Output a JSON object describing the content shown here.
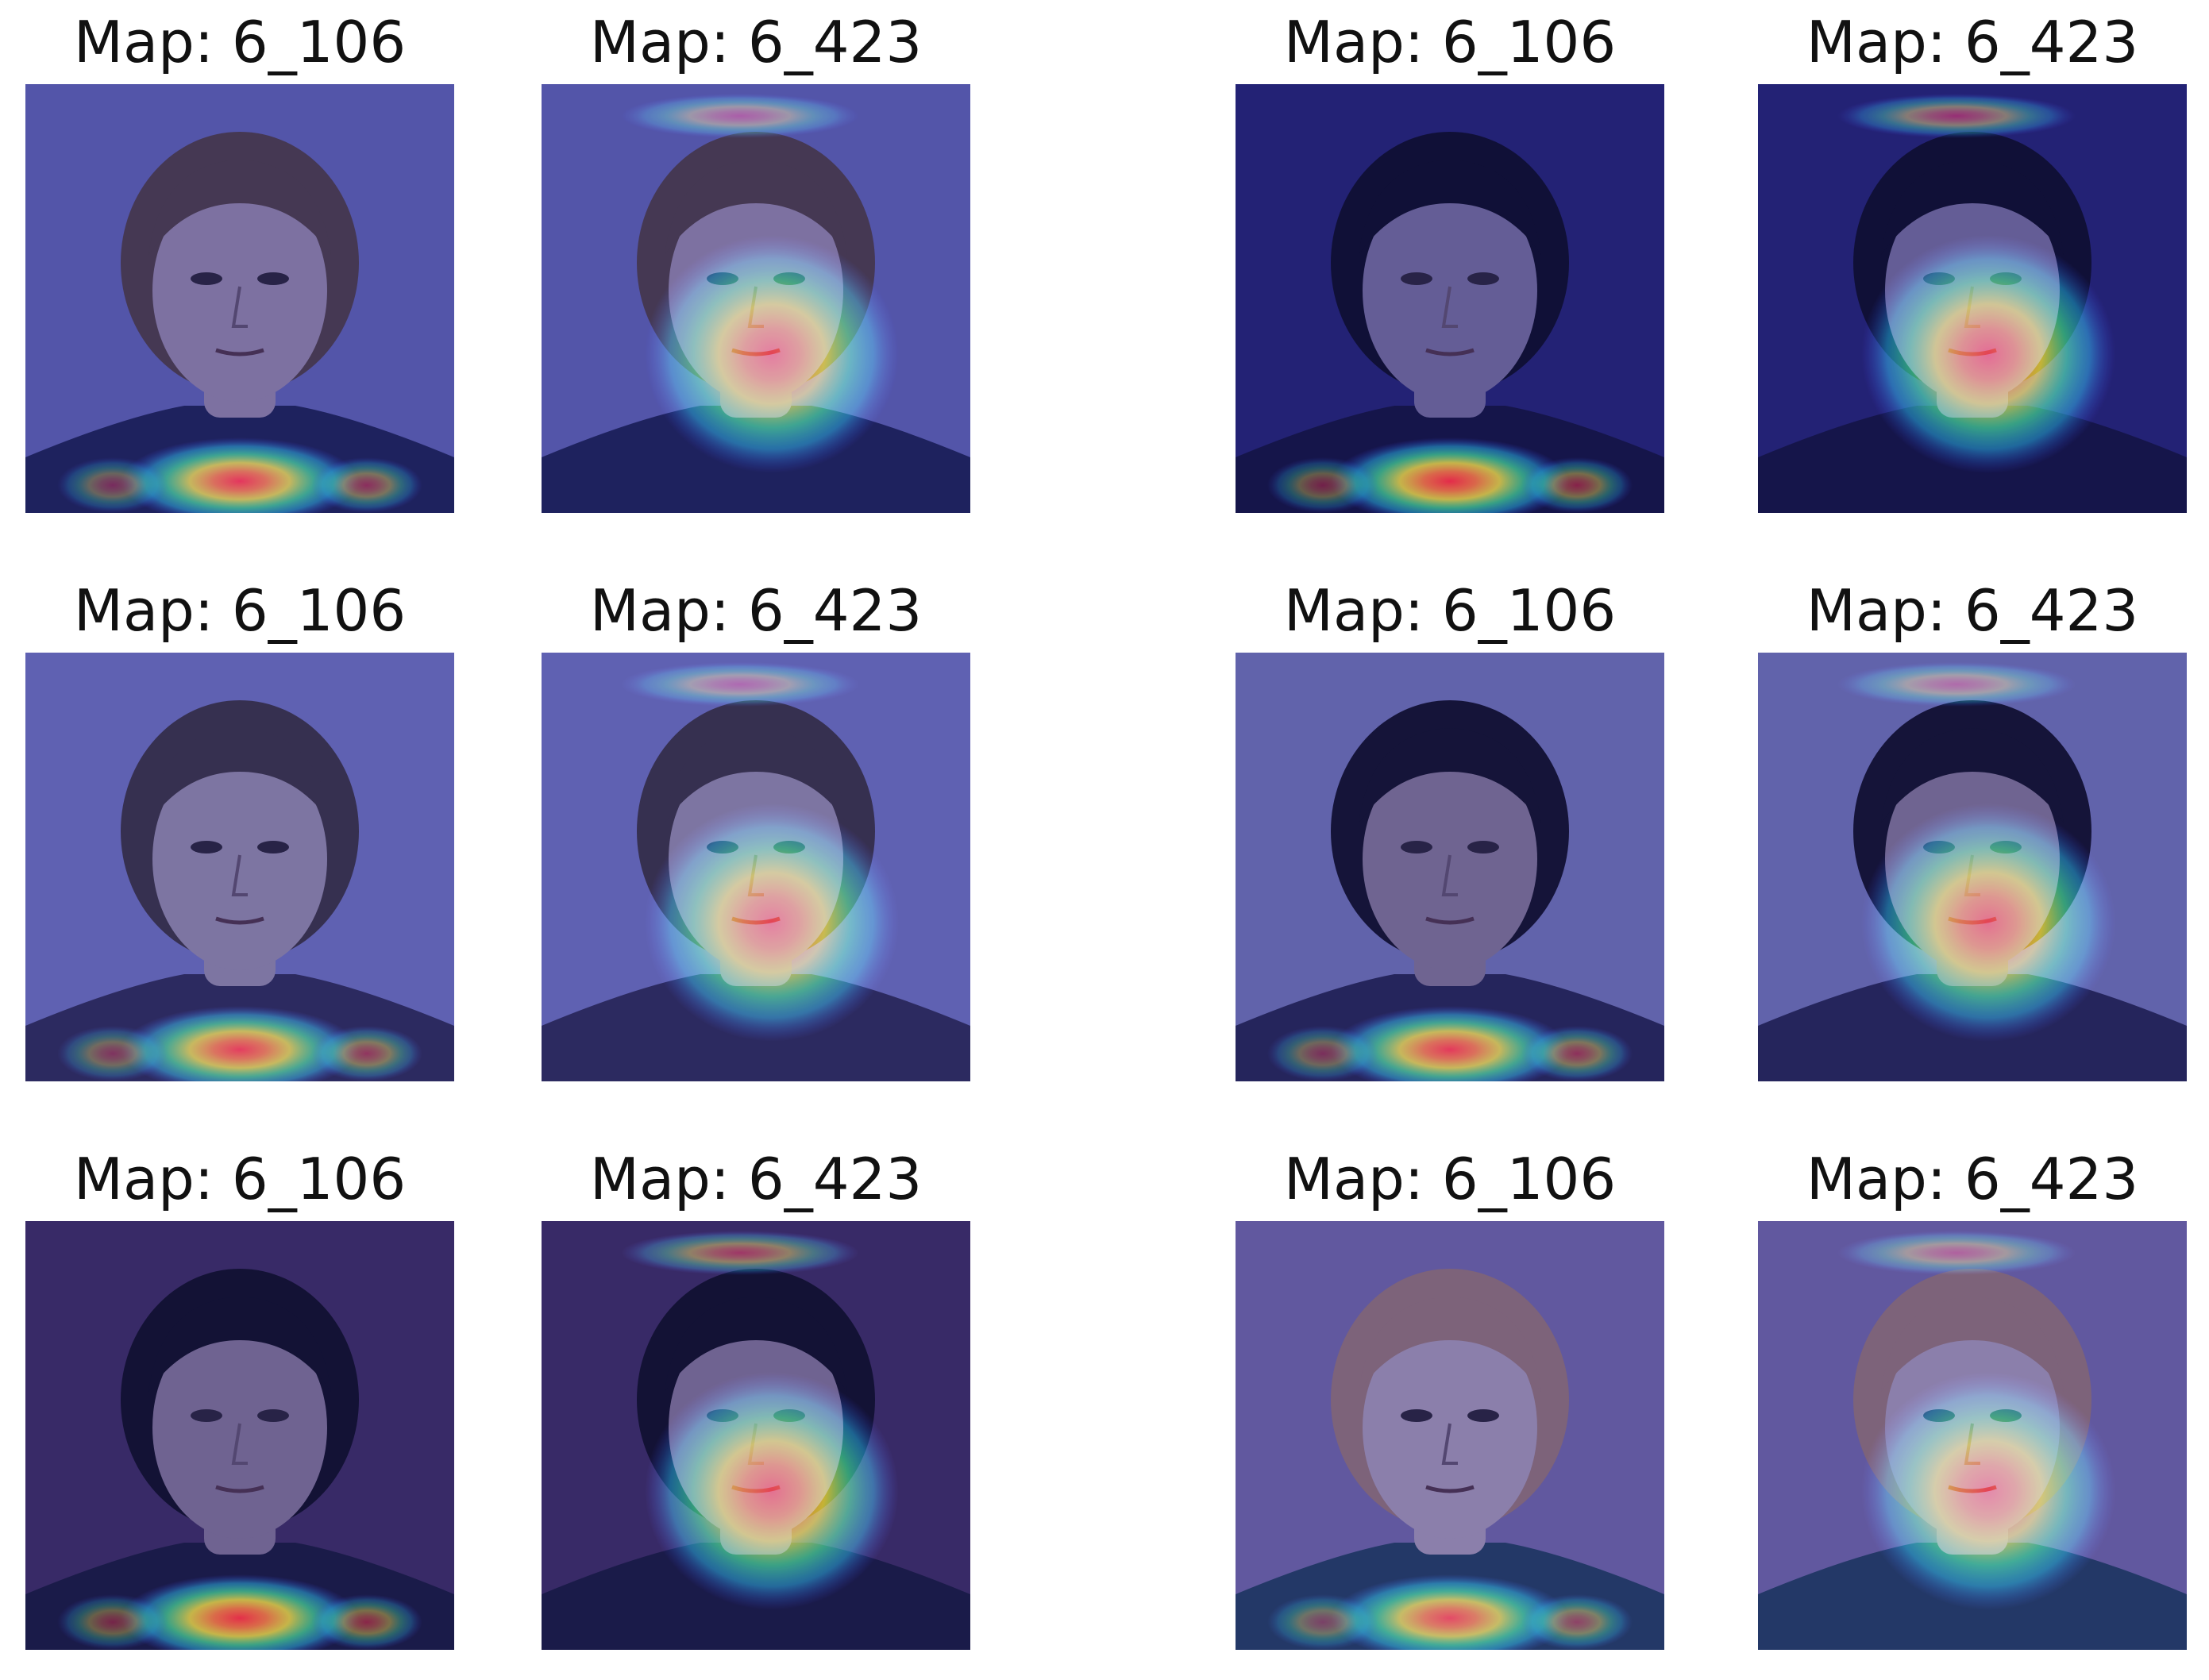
{
  "figure": {
    "left_group": {
      "rows": [
        {
          "panels": [
            {
              "title": "Map: 6_106",
              "focus": "neck",
              "bg": "#5a5aa6",
              "shirt": "#1e2050",
              "skin": "#8a7a9c",
              "hair": "#4a3a44"
            },
            {
              "title": "Map: 6_423",
              "focus": "face",
              "bg": "#5a5aa6",
              "shirt": "#1e2050",
              "skin": "#8a7a9c",
              "hair": "#4a3a44"
            }
          ]
        },
        {
          "panels": [
            {
              "title": "Map: 6_106",
              "focus": "neck",
              "bg": "#6868b0",
              "shirt": "#2e2a52",
              "skin": "#8a7f9e",
              "hair": "#3a3040"
            },
            {
              "title": "Map: 6_423",
              "focus": "face",
              "bg": "#6868b0",
              "shirt": "#2e2a52",
              "skin": "#8a7f9e",
              "hair": "#3a3040"
            }
          ]
        },
        {
          "panels": [
            {
              "title": "Map: 6_106",
              "focus": "neck",
              "bg": "#3c2a5a",
              "shirt": "#1a1838",
              "skin": "#7a6a8a",
              "hair": "#120e22"
            },
            {
              "title": "Map: 6_423",
              "focus": "face",
              "bg": "#3c2a5a",
              "shirt": "#1a1838",
              "skin": "#7a6a8a",
              "hair": "#120e22"
            }
          ]
        }
      ]
    },
    "right_group": {
      "rows": [
        {
          "panels": [
            {
              "title": "Map: 6_106",
              "focus": "neck",
              "bg": "#24206a",
              "shirt": "#14123a",
              "skin": "#6e6490",
              "hair": "#0e0c24"
            },
            {
              "title": "Map: 6_423",
              "focus": "face",
              "bg": "#24206a",
              "shirt": "#14123a",
              "skin": "#6e6490",
              "hair": "#0e0c24"
            }
          ]
        },
        {
          "panels": [
            {
              "title": "Map: 6_106",
              "focus": "neck",
              "bg": "#6a6aa8",
              "shirt": "#26244e",
              "skin": "#7a6c8a",
              "hair": "#141026"
            },
            {
              "title": "Map: 6_423",
              "focus": "face",
              "bg": "#6a6aa8",
              "shirt": "#26244e",
              "skin": "#7a6c8a",
              "hair": "#141026"
            }
          ]
        },
        {
          "panels": [
            {
              "title": "Map: 6_106",
              "focus": "neck",
              "bg": "#6a5e9a",
              "shirt": "#243a5a",
              "skin": "#9a8aa8",
              "hair": "#8a6a70"
            },
            {
              "title": "Map: 6_423",
              "focus": "face",
              "bg": "#6a5e9a",
              "shirt": "#243a5a",
              "skin": "#9a8aa8",
              "hair": "#8a6a70"
            }
          ]
        }
      ]
    }
  }
}
